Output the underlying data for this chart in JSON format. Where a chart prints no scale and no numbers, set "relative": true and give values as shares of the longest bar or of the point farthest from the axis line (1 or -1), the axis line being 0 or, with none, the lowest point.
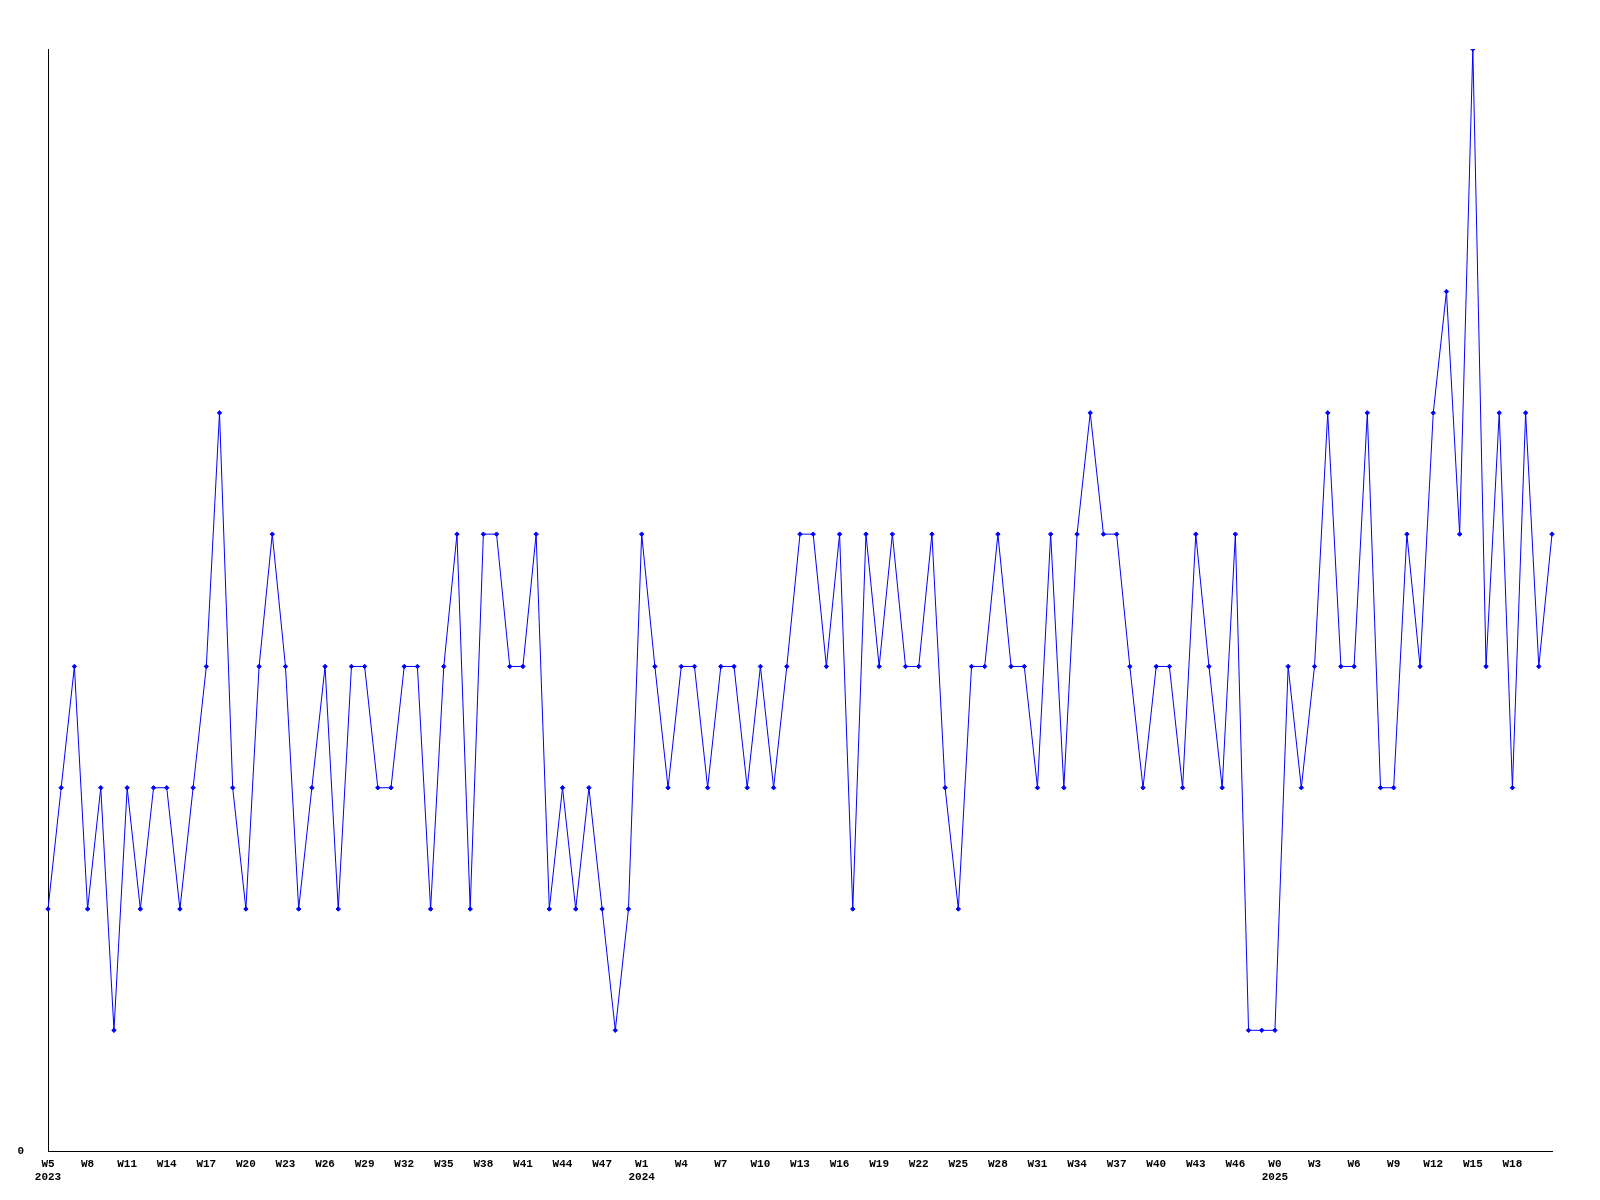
{
  "chart_data": {
    "type": "line",
    "relative": true,
    "categories": [
      "W5\n2023",
      null,
      null,
      "W8",
      null,
      null,
      "W11",
      null,
      null,
      "W14",
      null,
      null,
      "W17",
      null,
      null,
      "W20",
      null,
      null,
      "W23",
      null,
      null,
      "W26",
      null,
      null,
      "W29",
      null,
      null,
      "W32",
      null,
      null,
      "W35",
      null,
      null,
      "W38",
      null,
      null,
      "W41",
      null,
      null,
      "W44",
      null,
      null,
      "W47",
      null,
      null,
      "W1\n2024",
      null,
      null,
      "W4",
      null,
      null,
      "W7",
      null,
      null,
      "W10",
      null,
      null,
      "W13",
      null,
      null,
      "W16",
      null,
      null,
      "W19",
      null,
      null,
      "W22",
      null,
      null,
      "W25",
      null,
      null,
      "W28",
      null,
      null,
      "W31",
      null,
      null,
      "W34",
      null,
      null,
      "W37",
      null,
      null,
      "W40",
      null,
      null,
      "W43",
      null,
      null,
      "W46",
      null,
      null,
      "W0\n2025",
      null,
      null,
      "W3",
      null,
      null,
      "W6",
      null,
      null,
      "W9",
      null,
      null,
      "W12",
      null,
      null,
      "W15",
      null,
      null,
      "W18",
      null,
      null,
      null
    ],
    "series": [
      {
        "color": "#0000ff",
        "values": [
          0.22,
          0.33,
          0.44,
          0.22,
          0.33,
          0.11,
          0.33,
          0.22,
          0.33,
          0.33,
          0.22,
          0.33,
          0.44,
          0.67,
          0.33,
          0.22,
          0.44,
          0.56,
          0.44,
          0.22,
          0.33,
          0.44,
          0.22,
          0.44,
          0.44,
          0.33,
          0.33,
          0.44,
          0.44,
          0.22,
          0.44,
          0.56,
          0.22,
          0.56,
          0.56,
          0.44,
          0.44,
          0.56,
          0.22,
          0.33,
          0.22,
          0.33,
          0.22,
          0.11,
          0.22,
          0.56,
          0.44,
          0.33,
          0.44,
          0.44,
          0.33,
          0.44,
          0.44,
          0.33,
          0.44,
          0.33,
          0.44,
          0.56,
          0.56,
          0.44,
          0.56,
          0.22,
          0.56,
          0.44,
          0.56,
          0.44,
          0.44,
          0.56,
          0.33,
          0.22,
          0.44,
          0.44,
          0.56,
          0.44,
          0.44,
          0.33,
          0.56,
          0.33,
          0.56,
          0.67,
          0.56,
          0.56,
          0.44,
          0.33,
          0.44,
          0.44,
          0.33,
          0.56,
          0.44,
          0.33,
          0.56,
          0.11,
          0.11,
          0.11,
          0.44,
          0.33,
          0.44,
          0.67,
          0.44,
          0.44,
          0.67,
          0.33,
          0.33,
          0.56,
          0.44,
          0.67,
          0.78,
          0.56,
          1,
          0.44,
          0.67,
          0.33,
          0.67,
          0.44,
          0.56
        ]
      }
    ],
    "marker": "diamond",
    "grid": false,
    "legend": false,
    "annotations": [
      "0"
    ]
  }
}
